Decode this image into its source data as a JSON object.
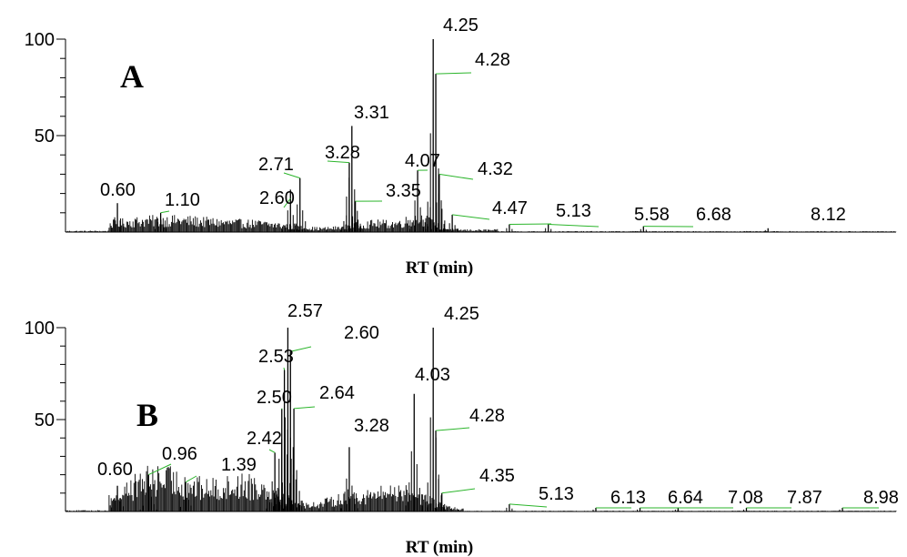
{
  "chart_data": [
    {
      "type": "line",
      "panel_letter": "A",
      "xlabel": "RT (min)",
      "ylabel": "",
      "xlim": [
        0,
        9.6
      ],
      "ylim": [
        0,
        100
      ],
      "yticks": [
        100,
        50
      ],
      "colors": {
        "trace": "#000000",
        "leader": "#2bb52b"
      },
      "peaks": [
        {
          "rt": 0.6,
          "label": "0.60",
          "height": 15
        },
        {
          "rt": 1.1,
          "label": "1.10",
          "height": 10
        },
        {
          "rt": 2.6,
          "label": "2.60",
          "height": 22
        },
        {
          "rt": 2.71,
          "label": "2.71",
          "height": 28
        },
        {
          "rt": 3.28,
          "label": "3.28",
          "height": 36
        },
        {
          "rt": 3.31,
          "label": "3.31",
          "height": 55
        },
        {
          "rt": 3.35,
          "label": "3.35",
          "height": 16
        },
        {
          "rt": 4.07,
          "label": "4.07",
          "height": 32
        },
        {
          "rt": 4.25,
          "label": "4.25",
          "height": 100
        },
        {
          "rt": 4.28,
          "label": "4.28",
          "height": 82
        },
        {
          "rt": 4.32,
          "label": "4.32",
          "height": 30
        },
        {
          "rt": 4.47,
          "label": "4.47",
          "height": 9
        },
        {
          "rt": 5.13,
          "label": "5.13",
          "height": 4
        },
        {
          "rt": 5.58,
          "label": "5.58",
          "height": 4
        },
        {
          "rt": 6.68,
          "label": "6.68",
          "height": 3
        },
        {
          "rt": 8.12,
          "label": "8.12",
          "height": 2
        }
      ]
    },
    {
      "type": "line",
      "panel_letter": "B",
      "xlabel": "RT (min)",
      "ylabel": "",
      "xlim": [
        0,
        9.6
      ],
      "ylim": [
        0,
        100
      ],
      "yticks": [
        100,
        50
      ],
      "colors": {
        "trace": "#000000",
        "leader": "#2bb52b"
      },
      "peaks": [
        {
          "rt": 0.6,
          "label": "0.60",
          "height": 14
        },
        {
          "rt": 0.96,
          "label": "0.96",
          "height": 20
        },
        {
          "rt": 1.39,
          "label": "1.39",
          "height": 16
        },
        {
          "rt": 2.42,
          "label": "2.42",
          "height": 32
        },
        {
          "rt": 2.5,
          "label": "2.50",
          "height": 56
        },
        {
          "rt": 2.53,
          "label": "2.53",
          "height": 77
        },
        {
          "rt": 2.57,
          "label": "2.57",
          "height": 100
        },
        {
          "rt": 2.6,
          "label": "2.60",
          "height": 87
        },
        {
          "rt": 2.64,
          "label": "2.64",
          "height": 56
        },
        {
          "rt": 3.28,
          "label": "3.28",
          "height": 35
        },
        {
          "rt": 4.03,
          "label": "4.03",
          "height": 64
        },
        {
          "rt": 4.25,
          "label": "4.25",
          "height": 100
        },
        {
          "rt": 4.28,
          "label": "4.28",
          "height": 44
        },
        {
          "rt": 4.35,
          "label": "4.35",
          "height": 10
        },
        {
          "rt": 5.13,
          "label": "5.13",
          "height": 4
        },
        {
          "rt": 6.13,
          "label": "6.13",
          "height": 2
        },
        {
          "rt": 6.64,
          "label": "6.64",
          "height": 2
        },
        {
          "rt": 7.08,
          "label": "7.08",
          "height": 2
        },
        {
          "rt": 7.87,
          "label": "7.87",
          "height": 2
        },
        {
          "rt": 8.98,
          "label": "8.98",
          "height": 2
        }
      ]
    }
  ]
}
